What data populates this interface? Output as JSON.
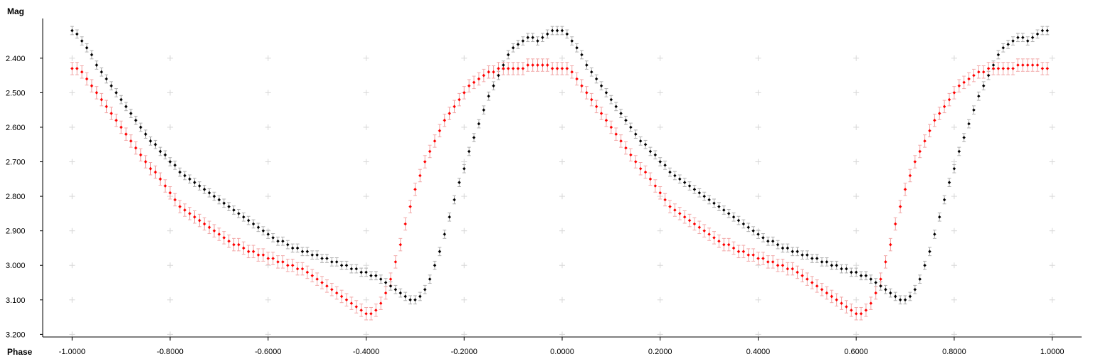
{
  "chart_data": {
    "type": "scatter",
    "title": "",
    "xlabel": "Phase",
    "ylabel": "Mag",
    "xlim": [
      -1.06,
      1.06
    ],
    "ylim": [
      3.2075,
      2.285
    ],
    "y_inverted": true,
    "grid": "cross markers",
    "legend": "none",
    "x_ticks": [
      {
        "value": -1.0,
        "label": "-1.0000"
      },
      {
        "value": -0.8,
        "label": "-0.8000"
      },
      {
        "value": -0.6,
        "label": "-0.6000"
      },
      {
        "value": -0.4,
        "label": "-0.4000"
      },
      {
        "value": -0.2,
        "label": "-0.2000"
      },
      {
        "value": 0.0,
        "label": "0.0000"
      },
      {
        "value": 0.2,
        "label": "0.2000"
      },
      {
        "value": 0.4,
        "label": "0.4000"
      },
      {
        "value": 0.6,
        "label": "0.6000"
      },
      {
        "value": 0.8,
        "label": "0.8000"
      },
      {
        "value": 1.0,
        "label": "1.0000"
      }
    ],
    "y_ticks": [
      {
        "value": 2.4,
        "label": "2.400"
      },
      {
        "value": 2.5,
        "label": "2.500"
      },
      {
        "value": 2.6,
        "label": "2.600"
      },
      {
        "value": 2.7,
        "label": "2.700"
      },
      {
        "value": 2.8,
        "label": "2.800"
      },
      {
        "value": 2.9,
        "label": "2.900"
      },
      {
        "value": 3.0,
        "label": "3.000"
      },
      {
        "value": 3.1,
        "label": "3.100"
      },
      {
        "value": 3.2,
        "label": "3.200"
      }
    ],
    "series": [
      {
        "color": "#000000",
        "error_color": "#b0b0b0",
        "error": 0.012,
        "phase_repeat": 1.0,
        "points": [
          [
            0.0,
            2.32
          ],
          [
            0.01,
            2.33
          ],
          [
            0.02,
            2.35
          ],
          [
            0.03,
            2.37
          ],
          [
            0.04,
            2.39
          ],
          [
            0.05,
            2.42
          ],
          [
            0.06,
            2.44
          ],
          [
            0.07,
            2.46
          ],
          [
            0.08,
            2.48
          ],
          [
            0.09,
            2.5
          ],
          [
            0.1,
            2.52
          ],
          [
            0.11,
            2.54
          ],
          [
            0.12,
            2.56
          ],
          [
            0.13,
            2.58
          ],
          [
            0.14,
            2.6
          ],
          [
            0.15,
            2.62
          ],
          [
            0.16,
            2.64
          ],
          [
            0.17,
            2.65
          ],
          [
            0.18,
            2.67
          ],
          [
            0.19,
            2.68
          ],
          [
            0.2,
            2.7
          ],
          [
            0.21,
            2.71
          ],
          [
            0.22,
            2.73
          ],
          [
            0.23,
            2.74
          ],
          [
            0.24,
            2.75
          ],
          [
            0.25,
            2.76
          ],
          [
            0.26,
            2.77
          ],
          [
            0.27,
            2.78
          ],
          [
            0.28,
            2.79
          ],
          [
            0.29,
            2.8
          ],
          [
            0.3,
            2.81
          ],
          [
            0.31,
            2.82
          ],
          [
            0.32,
            2.83
          ],
          [
            0.33,
            2.84
          ],
          [
            0.34,
            2.85
          ],
          [
            0.35,
            2.86
          ],
          [
            0.36,
            2.87
          ],
          [
            0.37,
            2.88
          ],
          [
            0.38,
            2.89
          ],
          [
            0.39,
            2.9
          ],
          [
            0.4,
            2.91
          ],
          [
            0.41,
            2.92
          ],
          [
            0.42,
            2.93
          ],
          [
            0.43,
            2.93
          ],
          [
            0.44,
            2.94
          ],
          [
            0.45,
            2.95
          ],
          [
            0.46,
            2.95
          ],
          [
            0.47,
            2.96
          ],
          [
            0.48,
            2.96
          ],
          [
            0.49,
            2.97
          ],
          [
            0.5,
            2.97
          ],
          [
            0.51,
            2.98
          ],
          [
            0.52,
            2.98
          ],
          [
            0.53,
            2.99
          ],
          [
            0.54,
            2.99
          ],
          [
            0.55,
            3.0
          ],
          [
            0.56,
            3.0
          ],
          [
            0.57,
            3.01
          ],
          [
            0.58,
            3.01
          ],
          [
            0.59,
            3.02
          ],
          [
            0.6,
            3.02
          ],
          [
            0.61,
            3.03
          ],
          [
            0.62,
            3.03
          ],
          [
            0.63,
            3.04
          ],
          [
            0.64,
            3.05
          ],
          [
            0.65,
            3.06
          ],
          [
            0.66,
            3.07
          ],
          [
            0.67,
            3.08
          ],
          [
            0.68,
            3.09
          ],
          [
            0.69,
            3.1
          ],
          [
            0.7,
            3.1
          ],
          [
            0.71,
            3.09
          ],
          [
            0.72,
            3.07
          ],
          [
            0.73,
            3.04
          ],
          [
            0.74,
            3.0
          ],
          [
            0.75,
            2.96
          ],
          [
            0.76,
            2.91
          ],
          [
            0.77,
            2.86
          ],
          [
            0.78,
            2.81
          ],
          [
            0.79,
            2.76
          ],
          [
            0.8,
            2.72
          ],
          [
            0.81,
            2.67
          ],
          [
            0.82,
            2.63
          ],
          [
            0.83,
            2.59
          ],
          [
            0.84,
            2.55
          ],
          [
            0.85,
            2.51
          ],
          [
            0.86,
            2.48
          ],
          [
            0.87,
            2.45
          ],
          [
            0.88,
            2.42
          ],
          [
            0.89,
            2.39
          ],
          [
            0.9,
            2.37
          ],
          [
            0.91,
            2.36
          ],
          [
            0.92,
            2.35
          ],
          [
            0.93,
            2.34
          ],
          [
            0.94,
            2.34
          ],
          [
            0.95,
            2.35
          ],
          [
            0.96,
            2.34
          ],
          [
            0.97,
            2.33
          ],
          [
            0.98,
            2.32
          ],
          [
            0.99,
            2.32
          ]
        ]
      },
      {
        "color": "#ff0000",
        "error_color": "#f2a8a8",
        "error": 0.018,
        "phase_repeat": 1.0,
        "points": [
          [
            0.0,
            2.43
          ],
          [
            0.01,
            2.43
          ],
          [
            0.02,
            2.44
          ],
          [
            0.03,
            2.46
          ],
          [
            0.04,
            2.48
          ],
          [
            0.05,
            2.5
          ],
          [
            0.06,
            2.52
          ],
          [
            0.07,
            2.54
          ],
          [
            0.08,
            2.56
          ],
          [
            0.09,
            2.58
          ],
          [
            0.1,
            2.6
          ],
          [
            0.11,
            2.62
          ],
          [
            0.12,
            2.64
          ],
          [
            0.13,
            2.66
          ],
          [
            0.14,
            2.68
          ],
          [
            0.15,
            2.7
          ],
          [
            0.16,
            2.72
          ],
          [
            0.17,
            2.73
          ],
          [
            0.18,
            2.75
          ],
          [
            0.19,
            2.77
          ],
          [
            0.2,
            2.79
          ],
          [
            0.21,
            2.81
          ],
          [
            0.22,
            2.83
          ],
          [
            0.23,
            2.84
          ],
          [
            0.24,
            2.85
          ],
          [
            0.25,
            2.86
          ],
          [
            0.26,
            2.87
          ],
          [
            0.27,
            2.88
          ],
          [
            0.28,
            2.89
          ],
          [
            0.29,
            2.9
          ],
          [
            0.3,
            2.91
          ],
          [
            0.31,
            2.92
          ],
          [
            0.32,
            2.93
          ],
          [
            0.33,
            2.94
          ],
          [
            0.34,
            2.94
          ],
          [
            0.35,
            2.95
          ],
          [
            0.36,
            2.96
          ],
          [
            0.37,
            2.96
          ],
          [
            0.38,
            2.97
          ],
          [
            0.39,
            2.97
          ],
          [
            0.4,
            2.98
          ],
          [
            0.41,
            2.98
          ],
          [
            0.42,
            2.99
          ],
          [
            0.43,
            2.99
          ],
          [
            0.44,
            3.0
          ],
          [
            0.45,
            3.0
          ],
          [
            0.46,
            3.01
          ],
          [
            0.47,
            3.01
          ],
          [
            0.48,
            3.02
          ],
          [
            0.49,
            3.03
          ],
          [
            0.5,
            3.04
          ],
          [
            0.51,
            3.05
          ],
          [
            0.52,
            3.06
          ],
          [
            0.53,
            3.07
          ],
          [
            0.54,
            3.08
          ],
          [
            0.55,
            3.09
          ],
          [
            0.56,
            3.1
          ],
          [
            0.57,
            3.11
          ],
          [
            0.58,
            3.12
          ],
          [
            0.59,
            3.13
          ],
          [
            0.6,
            3.14
          ],
          [
            0.61,
            3.14
          ],
          [
            0.62,
            3.13
          ],
          [
            0.63,
            3.11
          ],
          [
            0.64,
            3.08
          ],
          [
            0.65,
            3.04
          ],
          [
            0.66,
            2.99
          ],
          [
            0.67,
            2.94
          ],
          [
            0.68,
            2.88
          ],
          [
            0.69,
            2.83
          ],
          [
            0.7,
            2.78
          ],
          [
            0.71,
            2.74
          ],
          [
            0.72,
            2.7
          ],
          [
            0.73,
            2.67
          ],
          [
            0.74,
            2.64
          ],
          [
            0.75,
            2.61
          ],
          [
            0.76,
            2.58
          ],
          [
            0.77,
            2.56
          ],
          [
            0.78,
            2.54
          ],
          [
            0.79,
            2.52
          ],
          [
            0.8,
            2.5
          ],
          [
            0.81,
            2.48
          ],
          [
            0.82,
            2.47
          ],
          [
            0.83,
            2.46
          ],
          [
            0.84,
            2.45
          ],
          [
            0.85,
            2.44
          ],
          [
            0.86,
            2.44
          ],
          [
            0.87,
            2.43
          ],
          [
            0.88,
            2.43
          ],
          [
            0.89,
            2.43
          ],
          [
            0.9,
            2.43
          ],
          [
            0.91,
            2.43
          ],
          [
            0.92,
            2.43
          ],
          [
            0.93,
            2.42
          ],
          [
            0.94,
            2.42
          ],
          [
            0.95,
            2.42
          ],
          [
            0.96,
            2.42
          ],
          [
            0.97,
            2.42
          ],
          [
            0.98,
            2.43
          ],
          [
            0.99,
            2.43
          ]
        ]
      }
    ]
  }
}
